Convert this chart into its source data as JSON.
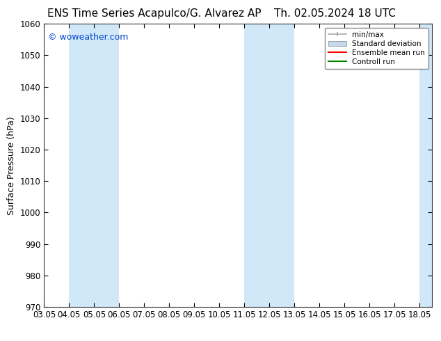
{
  "title_left": "ENS Time Series Acapulco/G. Alvarez AP",
  "title_right": "Th. 02.05.2024 18 UTC",
  "ylabel": "Surface Pressure (hPa)",
  "ylim": [
    970,
    1060
  ],
  "yticks": [
    970,
    980,
    990,
    1000,
    1010,
    1020,
    1030,
    1040,
    1050,
    1060
  ],
  "xlim_min": 0,
  "xlim_max": 15.5,
  "xtick_labels": [
    "03.05",
    "04.05",
    "05.05",
    "06.05",
    "07.05",
    "08.05",
    "09.05",
    "10.05",
    "11.05",
    "12.05",
    "13.05",
    "14.05",
    "15.05",
    "16.05",
    "17.05",
    "18.05"
  ],
  "xtick_positions": [
    0,
    1,
    2,
    3,
    4,
    5,
    6,
    7,
    8,
    9,
    10,
    11,
    12,
    13,
    14,
    15
  ],
  "watermark": "© woweather.com",
  "watermark_color": "#0044cc",
  "bg_color": "#ffffff",
  "plot_bg_color": "#ffffff",
  "band_color": "#d0e8f8",
  "bands": [
    {
      "xmin": 1.0,
      "xmax": 3.0
    },
    {
      "xmin": 8.0,
      "xmax": 10.0
    },
    {
      "xmin": 15.0,
      "xmax": 15.5
    }
  ],
  "legend_items": [
    {
      "label": "min/max",
      "color": "#aaaaaa",
      "type": "errorbar"
    },
    {
      "label": "Standard deviation",
      "color": "#c8d8e8",
      "type": "fill"
    },
    {
      "label": "Ensemble mean run",
      "color": "#ff0000",
      "type": "line"
    },
    {
      "label": "Controll run",
      "color": "#008800",
      "type": "line"
    }
  ],
  "tick_fontsize": 8.5,
  "label_fontsize": 9,
  "title_fontsize": 11,
  "watermark_fontsize": 9
}
